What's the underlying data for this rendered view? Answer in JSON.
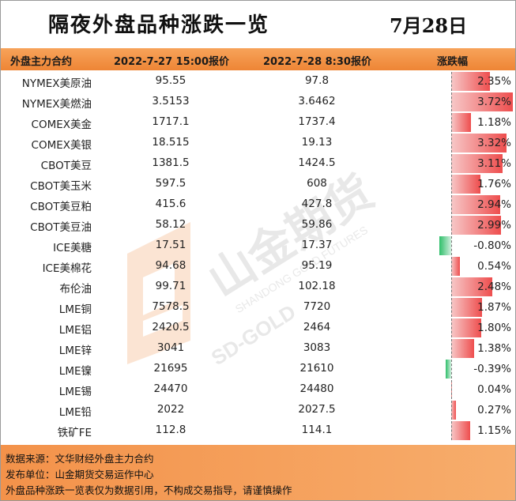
{
  "title": "隔夜外盘品种涨跌一览",
  "date": "7月28日",
  "header": {
    "col_name": "外盘主力合约",
    "col_price1": "2022-7-27 15:00报价",
    "col_price2": "2022-7-28 8:30报价",
    "col_change": "涨跌幅"
  },
  "rows": [
    {
      "name": "NYMEX美原油",
      "p1": "95.55",
      "p2": "97.8",
      "pct": "2.35%",
      "value": 2.35
    },
    {
      "name": "NYMEX美燃油",
      "p1": "3.5153",
      "p2": "3.6462",
      "pct": "3.72%",
      "value": 3.72
    },
    {
      "name": "COMEX美金",
      "p1": "1717.1",
      "p2": "1737.4",
      "pct": "1.18%",
      "value": 1.18
    },
    {
      "name": "COMEX美银",
      "p1": "18.515",
      "p2": "19.13",
      "pct": "3.32%",
      "value": 3.32
    },
    {
      "name": "CBOT美豆",
      "p1": "1381.5",
      "p2": "1424.5",
      "pct": "3.11%",
      "value": 3.11
    },
    {
      "name": "CBOT美玉米",
      "p1": "597.5",
      "p2": "608",
      "pct": "1.76%",
      "value": 1.76
    },
    {
      "name": "CBOT美豆粕",
      "p1": "415.6",
      "p2": "427.8",
      "pct": "2.94%",
      "value": 2.94
    },
    {
      "name": "CBOT美豆油",
      "p1": "58.12",
      "p2": "59.86",
      "pct": "2.99%",
      "value": 2.99
    },
    {
      "name": "ICE美糖",
      "p1": "17.51",
      "p2": "17.37",
      "pct": "-0.80%",
      "value": -0.8
    },
    {
      "name": "ICE美棉花",
      "p1": "94.68",
      "p2": "95.19",
      "pct": "0.54%",
      "value": 0.54
    },
    {
      "name": "布伦油",
      "p1": "99.71",
      "p2": "102.18",
      "pct": "2.48%",
      "value": 2.48
    },
    {
      "name": "LME铜",
      "p1": "7578.5",
      "p2": "7720",
      "pct": "1.87%",
      "value": 1.87
    },
    {
      "name": "LME铝",
      "p1": "2420.5",
      "p2": "2464",
      "pct": "1.80%",
      "value": 1.8
    },
    {
      "name": "LME锌",
      "p1": "3041",
      "p2": "3083",
      "pct": "1.38%",
      "value": 1.38
    },
    {
      "name": "LME镍",
      "p1": "21695",
      "p2": "21610",
      "pct": "-0.39%",
      "value": -0.39
    },
    {
      "name": "LME锡",
      "p1": "24470",
      "p2": "24480",
      "pct": "0.04%",
      "value": 0.04
    },
    {
      "name": "LME铅",
      "p1": "2022",
      "p2": "2027.5",
      "pct": "0.27%",
      "value": 0.27
    },
    {
      "name": "铁矿FE",
      "p1": "112.8",
      "p2": "114.1",
      "pct": "1.15%",
      "value": 1.15
    }
  ],
  "bar_max": 3.72,
  "footer": {
    "line1": "数据来源：文华财经外盘主力合约",
    "line2": "发布单位：山金期货交易运作中心",
    "line3": "外盘品种涨跌一览表仅为数据引用，不构成交易指导，请谨慎操作"
  },
  "watermark": {
    "brand_cn": "山金期货",
    "brand_en": "SHANDONG GOLD FUTURES",
    "brand_code": "SD-GOLD"
  },
  "colors": {
    "header_orange": "#ee8535",
    "bar_up": "#ee4e4e",
    "bar_down": "#2fbf6a",
    "footer_orange": "#f3924a"
  }
}
